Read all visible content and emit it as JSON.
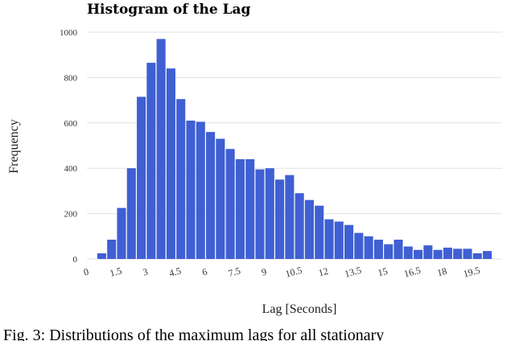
{
  "chart_data": {
    "type": "bar",
    "title": "Histogram of the Lag",
    "xlabel": "Lag [Seconds]",
    "ylabel": "Frequency",
    "ylim": [
      0,
      1000
    ],
    "grid": true,
    "y_ticks": [
      0,
      200,
      400,
      600,
      800,
      1000
    ],
    "x_tick_labels": [
      "0",
      "1.5",
      "3",
      "4.5",
      "6",
      "7.5",
      "9",
      "10.5",
      "12",
      "13.5",
      "15",
      "16.5",
      "18",
      "19.5"
    ],
    "bin_width": 0.5,
    "bin_starts": [
      0.5,
      1.0,
      1.5,
      2.0,
      2.5,
      3.0,
      3.5,
      4.0,
      4.5,
      5.0,
      5.5,
      6.0,
      6.5,
      7.0,
      7.5,
      8.0,
      8.5,
      9.0,
      9.5,
      10.0,
      10.5,
      11.0,
      11.5,
      12.0,
      12.5,
      13.0,
      13.5,
      14.0,
      14.5,
      15.0,
      15.5,
      16.0,
      16.5,
      17.0,
      17.5,
      18.0,
      18.5,
      19.0,
      19.5,
      20.0
    ],
    "values": [
      25,
      85,
      225,
      400,
      715,
      865,
      970,
      840,
      705,
      610,
      605,
      560,
      530,
      485,
      440,
      440,
      395,
      400,
      350,
      370,
      290,
      260,
      235,
      175,
      165,
      150,
      115,
      100,
      85,
      65,
      85,
      55,
      40,
      60,
      40,
      50,
      45,
      45,
      25,
      35
    ],
    "bar_color": "#3f5fd3"
  },
  "caption": "Fig. 3: Distributions of the maximum lags for all stationary"
}
